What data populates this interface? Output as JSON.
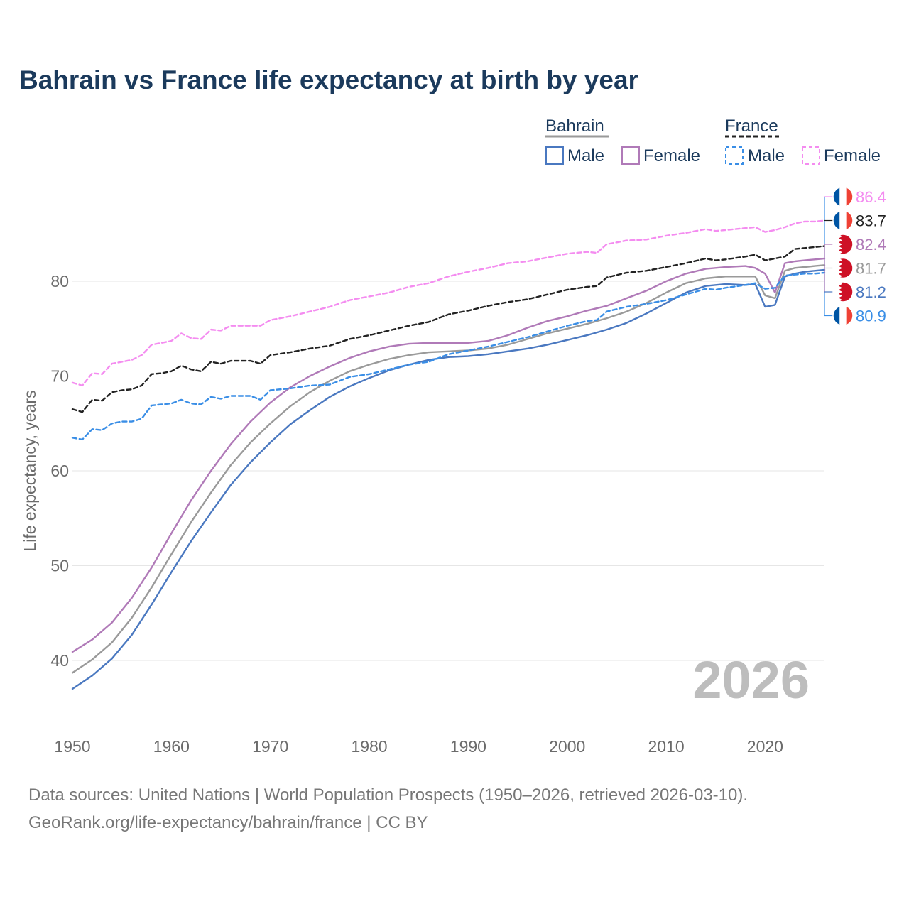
{
  "title": "Bahrain vs France life expectancy at birth by year",
  "year_watermark": "2026",
  "source_line_1": "Data sources: United Nations | World Population Prospects (1950–2026, retrieved 2026-03-10).",
  "source_line_2": "GeoRank.org/life-expectancy/bahrain/france | CC BY",
  "legend": {
    "groups": [
      {
        "name": "Bahrain",
        "line_color": "#9a9a9a",
        "dash": false
      },
      {
        "name": "France",
        "line_color": "#222222",
        "dash": true
      }
    ],
    "items": [
      {
        "label": "Male",
        "color": "#4a78c0",
        "dash": false
      },
      {
        "label": "Female",
        "color": "#b07ab8",
        "dash": false
      },
      {
        "label": "Male",
        "color": "#3a8ee6",
        "dash": true
      },
      {
        "label": "Female",
        "color": "#f48cf0",
        "dash": true
      }
    ]
  },
  "chart_data": {
    "type": "line",
    "title": "Bahrain vs France life expectancy at birth by year",
    "xlabel": "",
    "ylabel": "Life expectancy, years",
    "xlim": [
      1950,
      2026
    ],
    "ylim": [
      35,
      88
    ],
    "xticks": [
      1950,
      1960,
      1970,
      1980,
      1990,
      2000,
      2010,
      2020
    ],
    "yticks": [
      40,
      50,
      60,
      70,
      80
    ],
    "grid": true,
    "series": [
      {
        "name": "Bahrain Male",
        "country": "Bahrain",
        "sex": "Male",
        "color": "#4a78c0",
        "dash": false,
        "flag": "bahrain",
        "end_label": "81.2",
        "x": [
          1950,
          1952,
          1954,
          1956,
          1958,
          1960,
          1962,
          1964,
          1966,
          1968,
          1970,
          1972,
          1974,
          1976,
          1978,
          1980,
          1982,
          1984,
          1986,
          1988,
          1990,
          1992,
          1994,
          1996,
          1998,
          2000,
          2002,
          2004,
          2006,
          2008,
          2010,
          2012,
          2014,
          2016,
          2018,
          2019,
          2020,
          2021,
          2022,
          2023,
          2024,
          2025,
          2026
        ],
        "y": [
          37.0,
          38.4,
          40.2,
          42.7,
          45.9,
          49.3,
          52.6,
          55.6,
          58.5,
          60.9,
          63.0,
          64.9,
          66.4,
          67.8,
          68.9,
          69.8,
          70.6,
          71.2,
          71.7,
          72.0,
          72.1,
          72.3,
          72.6,
          72.9,
          73.3,
          73.8,
          74.3,
          74.9,
          75.6,
          76.6,
          77.7,
          78.8,
          79.5,
          79.7,
          79.6,
          79.7,
          77.3,
          77.5,
          80.5,
          80.8,
          81.0,
          81.1,
          81.2
        ]
      },
      {
        "name": "Bahrain Female",
        "country": "Bahrain",
        "sex": "Female",
        "color": "#b07ab8",
        "dash": false,
        "flag": "bahrain",
        "end_label": "82.4",
        "x": [
          1950,
          1952,
          1954,
          1956,
          1958,
          1960,
          1962,
          1964,
          1966,
          1968,
          1970,
          1972,
          1974,
          1976,
          1978,
          1980,
          1982,
          1984,
          1986,
          1988,
          1990,
          1992,
          1994,
          1996,
          1998,
          2000,
          2002,
          2004,
          2006,
          2008,
          2010,
          2012,
          2014,
          2016,
          2018,
          2019,
          2020,
          2021,
          2022,
          2023,
          2024,
          2025,
          2026
        ],
        "y": [
          40.9,
          42.2,
          44.0,
          46.6,
          49.8,
          53.4,
          56.9,
          60.0,
          62.8,
          65.2,
          67.2,
          68.8,
          70.0,
          71.0,
          71.9,
          72.6,
          73.1,
          73.4,
          73.5,
          73.5,
          73.5,
          73.7,
          74.3,
          75.1,
          75.8,
          76.3,
          76.9,
          77.4,
          78.2,
          79.0,
          80.0,
          80.8,
          81.3,
          81.5,
          81.6,
          81.4,
          80.8,
          78.8,
          81.9,
          82.1,
          82.2,
          82.3,
          82.4
        ]
      },
      {
        "name": "Bahrain",
        "country": "Bahrain",
        "sex": "Both",
        "color": "#9a9a9a",
        "dash": false,
        "flag": "bahrain",
        "end_label": "81.7",
        "x": [
          1950,
          1952,
          1954,
          1956,
          1958,
          1960,
          1962,
          1964,
          1966,
          1968,
          1970,
          1972,
          1974,
          1976,
          1978,
          1980,
          1982,
          1984,
          1986,
          1988,
          1990,
          1992,
          1994,
          1996,
          1998,
          2000,
          2002,
          2004,
          2006,
          2008,
          2010,
          2012,
          2014,
          2016,
          2018,
          2019,
          2020,
          2021,
          2022,
          2023,
          2024,
          2025,
          2026
        ],
        "y": [
          38.7,
          40.1,
          41.9,
          44.5,
          47.7,
          51.2,
          54.6,
          57.7,
          60.6,
          63.0,
          65.0,
          66.8,
          68.3,
          69.5,
          70.5,
          71.2,
          71.8,
          72.2,
          72.5,
          72.6,
          72.7,
          72.9,
          73.3,
          73.9,
          74.5,
          75.0,
          75.5,
          76.1,
          76.8,
          77.7,
          78.8,
          79.8,
          80.3,
          80.5,
          80.5,
          80.5,
          78.5,
          78.2,
          81.1,
          81.4,
          81.5,
          81.6,
          81.7
        ]
      },
      {
        "name": "France Male",
        "country": "France",
        "sex": "Male",
        "color": "#3a8ee6",
        "dash": true,
        "flag": "france",
        "end_label": "80.9",
        "x": [
          1950,
          1951,
          1952,
          1953,
          1954,
          1955,
          1956,
          1957,
          1958,
          1959,
          1960,
          1961,
          1962,
          1963,
          1964,
          1965,
          1966,
          1967,
          1968,
          1969,
          1970,
          1972,
          1974,
          1976,
          1978,
          1980,
          1982,
          1984,
          1986,
          1988,
          1990,
          1992,
          1994,
          1996,
          1998,
          2000,
          2002,
          2003,
          2004,
          2006,
          2008,
          2010,
          2012,
          2014,
          2015,
          2016,
          2018,
          2019,
          2020,
          2021,
          2022,
          2023,
          2024,
          2025,
          2026
        ],
        "y": [
          63.5,
          63.3,
          64.4,
          64.3,
          65.0,
          65.2,
          65.2,
          65.5,
          66.9,
          67.0,
          67.1,
          67.5,
          67.1,
          67.0,
          67.8,
          67.6,
          67.9,
          67.9,
          67.9,
          67.5,
          68.5,
          68.7,
          69.0,
          69.1,
          69.9,
          70.2,
          70.7,
          71.2,
          71.5,
          72.3,
          72.7,
          73.1,
          73.6,
          74.1,
          74.7,
          75.3,
          75.8,
          75.9,
          76.8,
          77.3,
          77.6,
          78.0,
          78.6,
          79.2,
          79.1,
          79.3,
          79.6,
          79.8,
          79.2,
          79.3,
          80.6,
          80.7,
          80.8,
          80.8,
          80.9
        ]
      },
      {
        "name": "France Female",
        "country": "France",
        "sex": "Female",
        "color": "#f48cf0",
        "dash": true,
        "flag": "france",
        "end_label": "86.4",
        "x": [
          1950,
          1951,
          1952,
          1953,
          1954,
          1955,
          1956,
          1957,
          1958,
          1959,
          1960,
          1961,
          1962,
          1963,
          1964,
          1965,
          1966,
          1967,
          1968,
          1969,
          1970,
          1972,
          1974,
          1976,
          1978,
          1980,
          1982,
          1984,
          1986,
          1988,
          1990,
          1992,
          1994,
          1996,
          1998,
          2000,
          2002,
          2003,
          2004,
          2006,
          2008,
          2010,
          2012,
          2014,
          2015,
          2016,
          2018,
          2019,
          2020,
          2021,
          2022,
          2023,
          2024,
          2025,
          2026
        ],
        "y": [
          69.3,
          69.0,
          70.3,
          70.2,
          71.3,
          71.5,
          71.7,
          72.2,
          73.3,
          73.5,
          73.7,
          74.5,
          74.0,
          73.9,
          74.9,
          74.8,
          75.3,
          75.3,
          75.3,
          75.3,
          75.9,
          76.3,
          76.8,
          77.3,
          78.0,
          78.4,
          78.8,
          79.4,
          79.8,
          80.5,
          81.0,
          81.4,
          81.9,
          82.1,
          82.5,
          82.9,
          83.1,
          83.0,
          83.9,
          84.3,
          84.4,
          84.8,
          85.1,
          85.5,
          85.3,
          85.4,
          85.6,
          85.7,
          85.2,
          85.4,
          85.7,
          86.1,
          86.3,
          86.3,
          86.4
        ]
      },
      {
        "name": "France",
        "country": "France",
        "sex": "Both",
        "color": "#222222",
        "dash": true,
        "flag": "france",
        "end_label": "83.7",
        "x": [
          1950,
          1951,
          1952,
          1953,
          1954,
          1955,
          1956,
          1957,
          1958,
          1959,
          1960,
          1961,
          1962,
          1963,
          1964,
          1965,
          1966,
          1967,
          1968,
          1969,
          1970,
          1972,
          1974,
          1976,
          1978,
          1980,
          1982,
          1984,
          1986,
          1988,
          1990,
          1992,
          1994,
          1996,
          1998,
          2000,
          2002,
          2003,
          2004,
          2006,
          2008,
          2010,
          2012,
          2014,
          2015,
          2016,
          2018,
          2019,
          2020,
          2021,
          2022,
          2023,
          2024,
          2025,
          2026
        ],
        "y": [
          66.5,
          66.2,
          67.5,
          67.4,
          68.3,
          68.5,
          68.6,
          69.0,
          70.2,
          70.3,
          70.5,
          71.1,
          70.7,
          70.5,
          71.5,
          71.3,
          71.6,
          71.6,
          71.6,
          71.3,
          72.2,
          72.5,
          72.9,
          73.2,
          73.9,
          74.3,
          74.8,
          75.3,
          75.7,
          76.5,
          76.9,
          77.4,
          77.8,
          78.1,
          78.6,
          79.1,
          79.4,
          79.5,
          80.4,
          80.9,
          81.1,
          81.5,
          81.9,
          82.4,
          82.2,
          82.3,
          82.6,
          82.8,
          82.2,
          82.4,
          82.6,
          83.4,
          83.5,
          83.6,
          83.7
        ]
      }
    ]
  }
}
